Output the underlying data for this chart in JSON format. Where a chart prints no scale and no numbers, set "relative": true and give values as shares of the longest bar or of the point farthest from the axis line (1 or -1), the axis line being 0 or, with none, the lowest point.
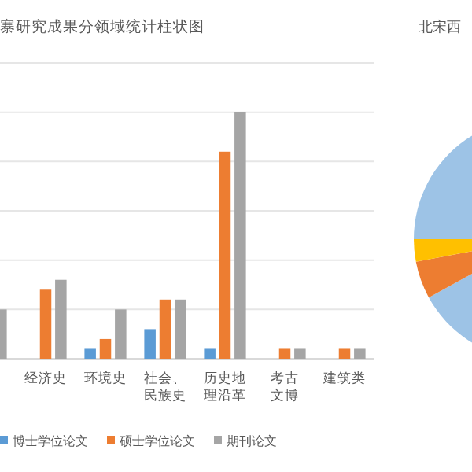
{
  "chart_data": [
    {
      "type": "bar",
      "title": "寨研究成果分领域统计柱状图",
      "relative": true,
      "grid": "y",
      "legend": "bottom",
      "categories": [
        null,
        "经济史",
        "环境史",
        "社会、民族史",
        "历史地理沿革",
        "考古文博",
        "建筑类"
      ],
      "series": [
        {
          "name": "博士学位论文",
          "color": "#5b9bd5",
          "values": [
            null,
            0,
            0.04,
            0.12,
            0.04,
            0,
            0
          ]
        },
        {
          "name": "硕士学位论文",
          "color": "#ed7d31",
          "values": [
            null,
            0.28,
            0.08,
            0.24,
            0.84,
            0.04,
            0.04
          ]
        },
        {
          "name": "期刊论文",
          "color": "#a5a5a5",
          "values": [
            0.2,
            0.32,
            0.2,
            0.24,
            1,
            0.04,
            0.04
          ]
        }
      ]
    },
    {
      "type": "pie",
      "title": "北宋西",
      "categories": [
        null,
        null,
        null
      ],
      "values": [
        92,
        5,
        3
      ],
      "colors": [
        "#9dc3e6",
        "#ed7d31",
        "#ffc000"
      ]
    }
  ]
}
